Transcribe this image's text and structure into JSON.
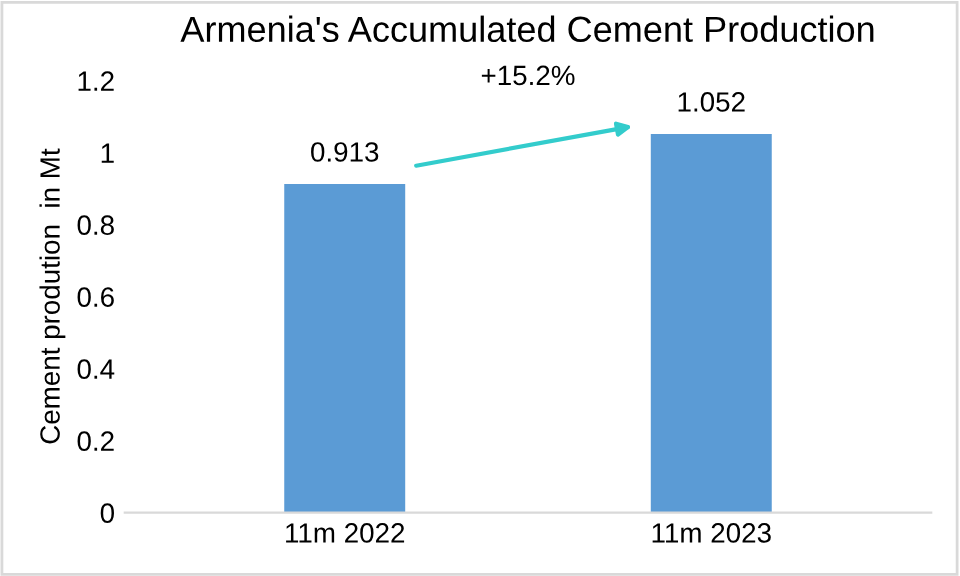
{
  "chart_data": {
    "type": "bar",
    "title": "Armenia's Accumulated Cement Production",
    "ylabel": "Cement prodution  in Mt",
    "categories": [
      "11m 2022",
      "11m 2023"
    ],
    "values": [
      0.913,
      1.052
    ],
    "color": "#5b9bd5",
    "ylim": [
      0,
      1.2
    ],
    "yticks": [
      0,
      0.2,
      0.4,
      0.6,
      0.8,
      1,
      1.2
    ],
    "data_labels": true,
    "grid": false,
    "legend": false,
    "annotations": [
      "+15.2%"
    ]
  }
}
